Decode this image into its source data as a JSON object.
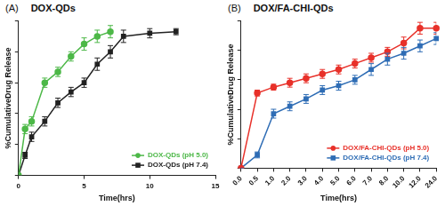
{
  "chart_data": [
    {
      "type": "line",
      "panel_label": "(A)",
      "title": "DOX-QDs",
      "x_label": "Time(hrs)",
      "y_label": "%CumulativeDrug Release",
      "xlim": [
        0,
        15
      ],
      "xticks": [
        0,
        5,
        10,
        15
      ],
      "ylim": [
        0,
        100
      ],
      "yticks": [
        0,
        20,
        40,
        60,
        80,
        100
      ],
      "tick_labels": "x",
      "grid": false,
      "legend": "lower right",
      "series": [
        {
          "name": "DOX-QDs (pH 5.0)",
          "color": "#4db848",
          "marker": "circle",
          "line_style": "solid",
          "x": [
            0,
            0.5,
            1,
            2,
            3,
            4,
            5,
            6,
            7
          ],
          "values": [
            0,
            30,
            35,
            60,
            67,
            77,
            85,
            90,
            93
          ],
          "error": [
            0,
            3,
            3,
            3,
            3,
            3,
            4,
            4,
            4
          ]
        },
        {
          "name": "DOX-QDs (pH 7.4)",
          "color": "#222222",
          "marker": "square",
          "line_style": "solid",
          "x": [
            0,
            0.5,
            1,
            2,
            3,
            4,
            5,
            6,
            7,
            8,
            10,
            12
          ],
          "values": [
            0,
            13,
            25,
            35,
            47,
            54,
            60,
            72,
            80,
            90,
            92,
            93
          ],
          "error": [
            0,
            2,
            3,
            3,
            3,
            3,
            3,
            4,
            4,
            4,
            3,
            2
          ]
        }
      ]
    },
    {
      "type": "line",
      "panel_label": "(B)",
      "title": "DOX/FA-CHI-QDs",
      "x_label": "Time(hrs)",
      "y_label": "%CumulativeDrug Release",
      "categories": [
        "0.0",
        "0.5",
        "1.0",
        "2.0",
        "3.0",
        "4.0",
        "5.0",
        "6.0",
        "7.0",
        "8.0",
        "10.0",
        "12.0",
        "24.0"
      ],
      "ylim": [
        0,
        100
      ],
      "yticks": [
        0,
        20,
        40,
        60,
        80,
        100
      ],
      "tick_labels": "x",
      "grid": false,
      "legend": "lower right",
      "series": [
        {
          "name": "DOX/FA-CHI-QDs (pH 5.0)",
          "color": "#e8312a",
          "marker": "circle",
          "line_style": "solid",
          "values": [
            0,
            51,
            55,
            58,
            61,
            64,
            67,
            71,
            75,
            79,
            85,
            95,
            95
          ],
          "error": [
            0,
            2,
            2,
            3,
            3,
            3,
            3,
            3,
            3,
            3,
            4,
            4,
            4
          ]
        },
        {
          "name": "DOX/FA-CHI-QDs (pH 7.4)",
          "color": "#2f6db5",
          "marker": "square",
          "line_style": "solid",
          "values": [
            0,
            9,
            37,
            42,
            47,
            53,
            56,
            60,
            67,
            74,
            78,
            83,
            88
          ],
          "error": [
            0,
            2,
            3,
            3,
            3,
            3,
            3,
            3,
            4,
            4,
            4,
            4,
            4
          ]
        }
      ]
    }
  ]
}
